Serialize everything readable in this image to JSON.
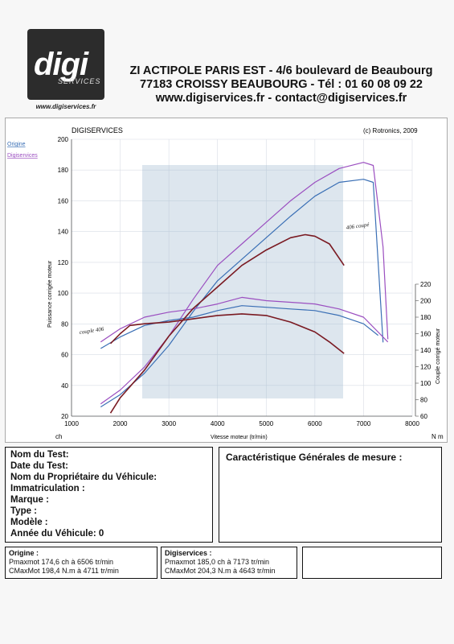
{
  "header": {
    "logo_brand": "digi",
    "logo_sub": "SERVICES",
    "logo_url": "www.digiservices.fr",
    "line1": "ZI ACTIPOLE PARIS EST - 4/6 boulevard de Beaubourg",
    "line2": "77183 CROISSY BEAUBOURG - Tél : 01 60 08 09 22",
    "line3": "www.digiservices.fr - contact@digiservices.fr"
  },
  "chart_labels": {
    "brand": "DIGISERVICES",
    "copyright": "(c) Rotronics, 2009",
    "legend_origin": "Origine",
    "legend_digi": "Digiservices",
    "ylabel_left": "Puissance corrigée moteur",
    "ylabel_right": "Couple corrigé moteur",
    "xlabel": "Vitesse moteur (tr/min)",
    "unit_left": "ch",
    "unit_right": "N m",
    "annotation_406": "406 coupé",
    "annotation_couple": "couple 406"
  },
  "chart_data": {
    "type": "line",
    "title": "DIGISERVICES",
    "xlabel": "Vitesse moteur (tr/min)",
    "ylabel": "Puissance corrigée moteur",
    "y2label": "Couple corrigé moteur",
    "xlim": [
      1000,
      8000
    ],
    "ylim": [
      20,
      200
    ],
    "y2lim": [
      60,
      220
    ],
    "xticks": [
      1000,
      2000,
      3000,
      4000,
      5000,
      6000,
      7000,
      8000
    ],
    "yticks": [
      20,
      40,
      60,
      80,
      100,
      120,
      140,
      160,
      180,
      200
    ],
    "y2ticks": [
      60,
      80,
      100,
      120,
      140,
      160,
      180,
      200,
      220
    ],
    "grid": true,
    "series": [
      {
        "name": "Origine",
        "axis": "left",
        "color": "#3a6fb5",
        "x": [
          1600,
          2000,
          2500,
          3000,
          3500,
          4000,
          4500,
          5000,
          5500,
          6000,
          6500,
          7000,
          7200,
          7300,
          7400
        ],
        "y": [
          26,
          34,
          48,
          66,
          88,
          108,
          122,
          136,
          150,
          163,
          172,
          174,
          172,
          120,
          68
        ]
      },
      {
        "name": "Digiservices",
        "axis": "left",
        "color": "#9b4fc0",
        "x": [
          1600,
          2000,
          2500,
          3000,
          3500,
          4000,
          4500,
          5000,
          5500,
          6000,
          6500,
          7000,
          7200,
          7400,
          7500
        ],
        "y": [
          28,
          37,
          52,
          72,
          96,
          118,
          132,
          146,
          160,
          172,
          181,
          185,
          183,
          130,
          70
        ]
      },
      {
        "name": "Origine",
        "axis": "right",
        "color": "#3a6fb5",
        "x": [
          1600,
          2000,
          2500,
          3000,
          3500,
          4000,
          4500,
          5000,
          5500,
          6000,
          6500,
          7000,
          7300
        ],
        "y": [
          142,
          156,
          170,
          176,
          180,
          188,
          194,
          192,
          190,
          188,
          182,
          172,
          158
        ]
      },
      {
        "name": "Digiservices",
        "axis": "right",
        "color": "#9b4fc0",
        "x": [
          1600,
          2000,
          2500,
          3000,
          3500,
          4000,
          4500,
          5000,
          5500,
          6000,
          6500,
          7000,
          7500
        ],
        "y": [
          150,
          166,
          180,
          186,
          190,
          196,
          204,
          200,
          198,
          196,
          190,
          180,
          150
        ]
      },
      {
        "name": "406 coupé",
        "axis": "left",
        "color": "#7a1a22",
        "x": [
          1800,
          2000,
          2500,
          3000,
          3500,
          4000,
          4500,
          5000,
          5500,
          5800,
          6000,
          6300,
          6600
        ],
        "y": [
          22,
          32,
          50,
          72,
          90,
          104,
          118,
          128,
          136,
          138,
          137,
          132,
          118
        ]
      },
      {
        "name": "couple 406",
        "axis": "right",
        "color": "#7a1a22",
        "x": [
          1800,
          2000,
          2200,
          2500,
          3000,
          3500,
          4000,
          4500,
          5000,
          5500,
          6000,
          6300,
          6600
        ],
        "y": [
          148,
          160,
          170,
          172,
          174,
          178,
          182,
          184,
          182,
          174,
          162,
          150,
          136
        ]
      }
    ]
  },
  "test_info": {
    "nom_test": "Nom du Test:",
    "date_test": "Date du Test:",
    "proprietaire": "Nom du Propriétaire du Véhicule:",
    "immatriculation": "Immatriculation  :",
    "marque": "Marque   :",
    "type": "Type   :",
    "modele": "Modèle   :",
    "annee": "Année du Véhicule: 0"
  },
  "characteristics_title": "Caractéristique Générales de mesure :",
  "origine": {
    "title": "Origine :",
    "pmax": "Pmaxmot  174,6 ch à 6506 tr/min",
    "cmax": "CMaxMot  198,4 N.m à 4711 tr/min"
  },
  "digiservices": {
    "title": "Digiservices :",
    "pmax": "Pmaxmot  185,0 ch à 7173 tr/min",
    "cmax": "CMaxMot  204,3 N.m à 4643 tr/min"
  }
}
